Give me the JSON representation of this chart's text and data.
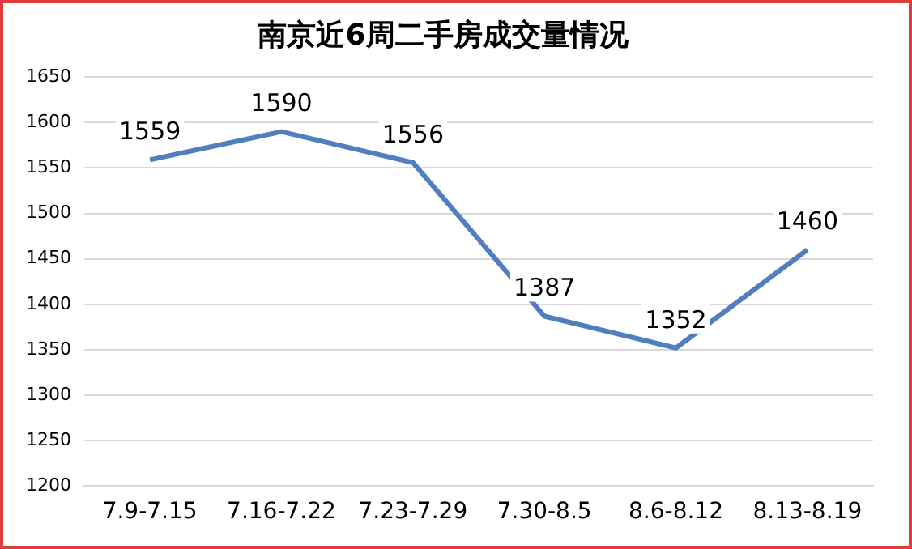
{
  "chart_data": {
    "type": "line",
    "title": "南京近6周二手房成交量情况",
    "categories": [
      "7.9-7.15",
      "7.16-7.22",
      "7.23-7.29",
      "7.30-8.5",
      "8.6-8.12",
      "8.13-8.19"
    ],
    "series": [
      {
        "color": "#4f7fbf",
        "values": [
          1559,
          1590,
          1556,
          1387,
          1352,
          1460
        ]
      }
    ],
    "ylim": [
      1200,
      1650
    ],
    "yticks": [
      1200,
      1250,
      1300,
      1350,
      1400,
      1450,
      1500,
      1550,
      1600,
      1650
    ],
    "grid": "y",
    "legend": false,
    "marker": "none",
    "line_style": "solid",
    "data_labels": true
  }
}
